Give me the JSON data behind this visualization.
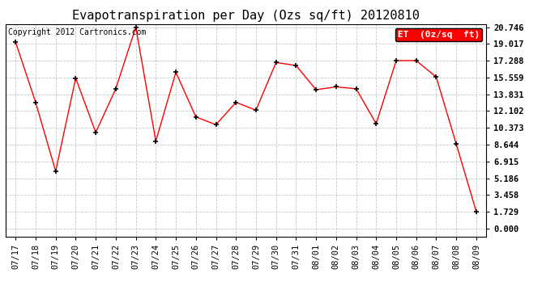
{
  "title": "Evapotranspiration per Day (Ozs sq/ft) 20120810",
  "dates": [
    "07/17",
    "07/18",
    "07/19",
    "07/20",
    "07/21",
    "07/22",
    "07/23",
    "07/24",
    "07/25",
    "07/26",
    "07/27",
    "07/28",
    "07/29",
    "07/30",
    "07/31",
    "08/01",
    "08/02",
    "08/03",
    "08/04",
    "08/05",
    "08/06",
    "08/07",
    "08/08",
    "08/09"
  ],
  "values": [
    19.2,
    13.0,
    5.9,
    15.5,
    9.9,
    14.4,
    20.746,
    9.0,
    16.1,
    11.5,
    10.7,
    13.0,
    12.2,
    17.1,
    16.8,
    14.3,
    14.6,
    14.4,
    10.8,
    17.3,
    17.3,
    15.6,
    8.7,
    1.729
  ],
  "yticks": [
    0.0,
    1.729,
    3.458,
    5.186,
    6.915,
    8.644,
    10.373,
    12.102,
    13.831,
    15.559,
    17.288,
    19.017,
    20.746
  ],
  "ymin": 0.0,
  "ymax": 20.746,
  "line_color": "red",
  "marker_color": "black",
  "bg_color": "#ffffff",
  "grid_color": "#c8c8c8",
  "legend_label": "ET  (0z/sq  ft)",
  "copyright_text": "Copyright 2012 Cartronics.com",
  "title_fontsize": 11,
  "tick_fontsize": 7.5,
  "copyright_fontsize": 7
}
